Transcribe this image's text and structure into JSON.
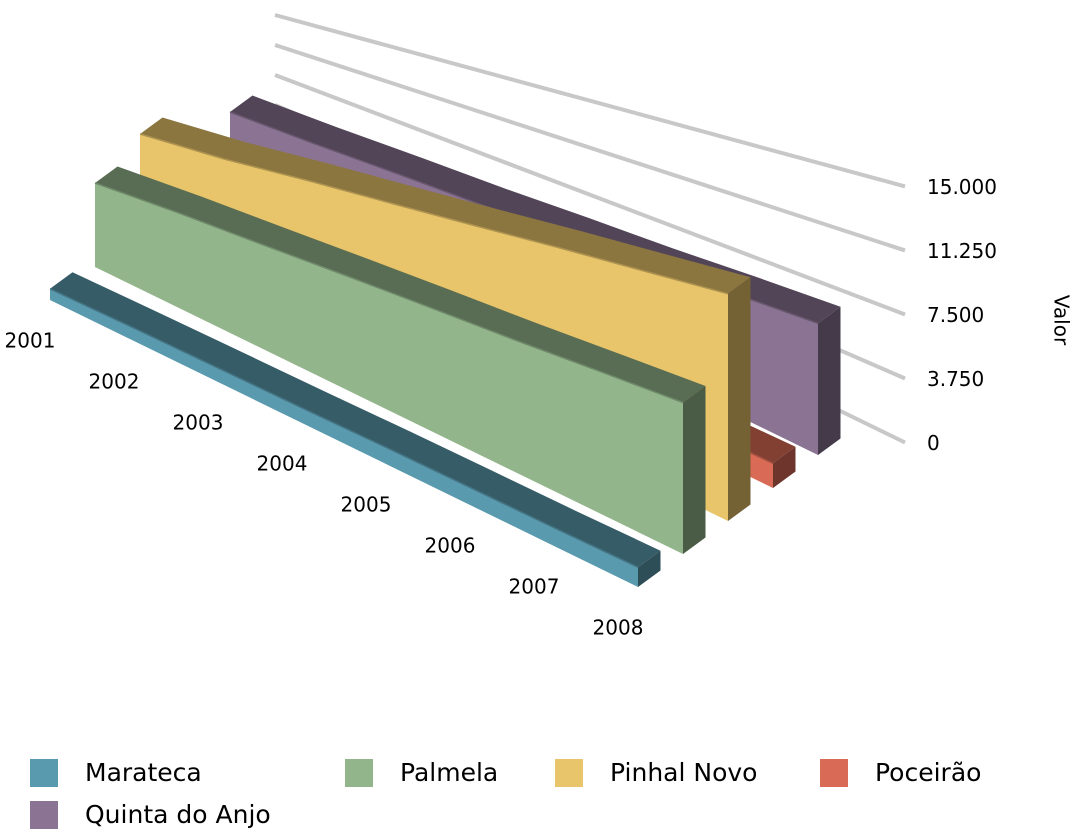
{
  "chart_data": {
    "type": "area3d",
    "y_label": "Valor",
    "categories": [
      "2001",
      "2002",
      "2003",
      "2004",
      "2005",
      "2006",
      "2007",
      "2008"
    ],
    "series": [
      {
        "name": "Marateca",
        "color": "#5a9aae",
        "values": [
          1400,
          1400,
          1350,
          1300,
          1300,
          1250,
          1200,
          1200
        ]
      },
      {
        "name": "Palmela",
        "color": "#93b58c",
        "values": [
          10500,
          10300,
          10000,
          9800,
          9600,
          9400,
          9300,
          9200
        ]
      },
      {
        "name": "Pinhal Novo",
        "color": "#e8c46a",
        "values": [
          12500,
          12600,
          13000,
          13200,
          13400,
          13600,
          13700,
          13800
        ]
      },
      {
        "name": "Poceirão",
        "color": "#d96a55",
        "values": [
          1500,
          1500,
          1500,
          1500,
          1500,
          1500,
          1500,
          1500
        ]
      },
      {
        "name": "Quinta do Anjo",
        "color": "#8a7393",
        "values": [
          7000,
          7100,
          7300,
          7400,
          7600,
          7700,
          7900,
          8000
        ]
      }
    ],
    "ylim": [
      0,
      15000
    ],
    "yticks": [
      0,
      {
        "value": 3750,
        "label": "3.750"
      },
      {
        "value": 7500,
        "label": "7.500"
      },
      {
        "value": 11250,
        "label": "11.250"
      },
      {
        "value": 15000,
        "label": "15.000"
      }
    ],
    "grid": true,
    "legend": "bottom"
  }
}
